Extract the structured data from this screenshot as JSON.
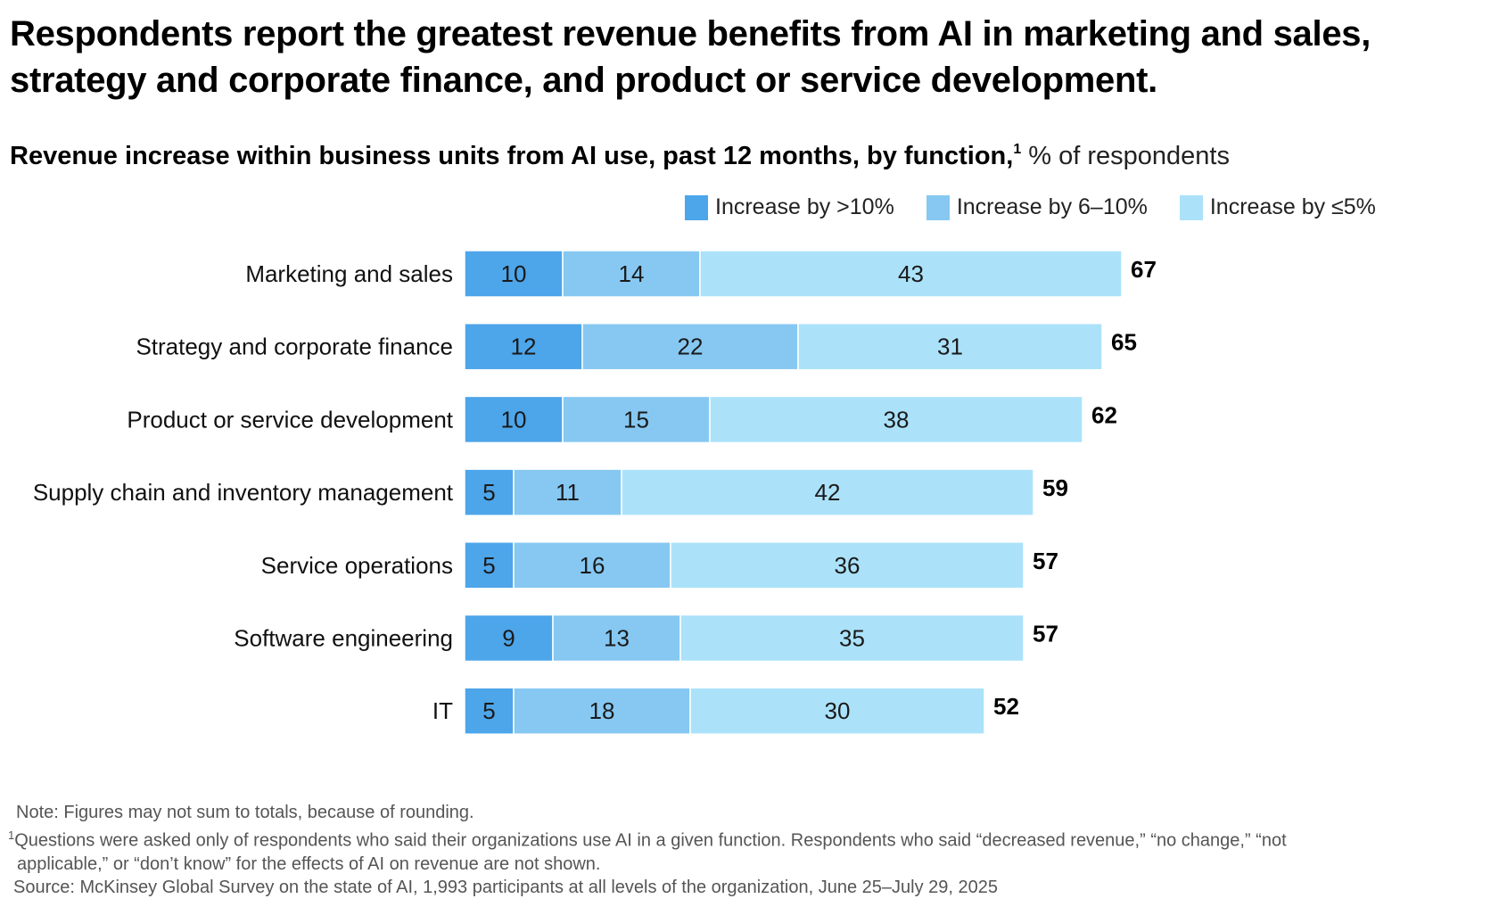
{
  "title": "Respondents report the greatest revenue benefits from AI in marketing and sales, strategy and corporate finance, and product or service development.",
  "subtitle": {
    "main": "Revenue increase within business units from AI use, past 12 months, by function,",
    "footnote_mark": "1",
    "unit": " % of respondents"
  },
  "colors": {
    "gt10": "#4DA5EA",
    "6to10": "#86C8F2",
    "le5": "#ABE2FA",
    "total_text": "#000000",
    "segment_text": "#1a1a1a"
  },
  "legend": [
    {
      "label": "Increase by >10%",
      "color": "#4DA5EA"
    },
    {
      "label": "Increase by 6–10%",
      "color": "#86C8F2"
    },
    {
      "label": "Increase by ≤5%",
      "color": "#ABE2FA"
    }
  ],
  "chart_data": {
    "type": "bar",
    "orientation": "horizontal",
    "stacked": true,
    "title": "Revenue increase within business units from AI use, past 12 months, by function",
    "xlabel": "",
    "ylabel": "",
    "unit": "% of respondents",
    "grid": false,
    "legend_position": "top-right",
    "categories": [
      "Marketing and sales",
      "Strategy and corporate finance",
      "Product or service development",
      "Supply chain and inventory management",
      "Service operations",
      "Software engineering",
      "IT"
    ],
    "series": [
      {
        "name": "Increase by >10%",
        "values": [
          10,
          12,
          10,
          5,
          5,
          9,
          5
        ]
      },
      {
        "name": "Increase by 6–10%",
        "values": [
          14,
          22,
          15,
          11,
          16,
          13,
          18
        ]
      },
      {
        "name": "Increase by ≤5%",
        "values": [
          43,
          31,
          38,
          42,
          36,
          35,
          30
        ]
      }
    ],
    "totals": [
      67,
      65,
      62,
      59,
      57,
      57,
      52
    ],
    "xlim": [
      0,
      67
    ]
  },
  "notes": {
    "note": "Note: Figures may not sum to totals, because of rounding.",
    "footnote_mark": "1",
    "footnote_line1": "Questions were asked only of respondents who said their organizations use AI in a given function. Respondents who said “decreased revenue,” “no change,” “not",
    "footnote_line2": "applicable,” or “don’t know” for the effects of AI on revenue are not shown.",
    "source": "Source: McKinsey Global Survey on the state of AI, 1,993 participants at all levels of the organization, June 25–July 29, 2025"
  }
}
